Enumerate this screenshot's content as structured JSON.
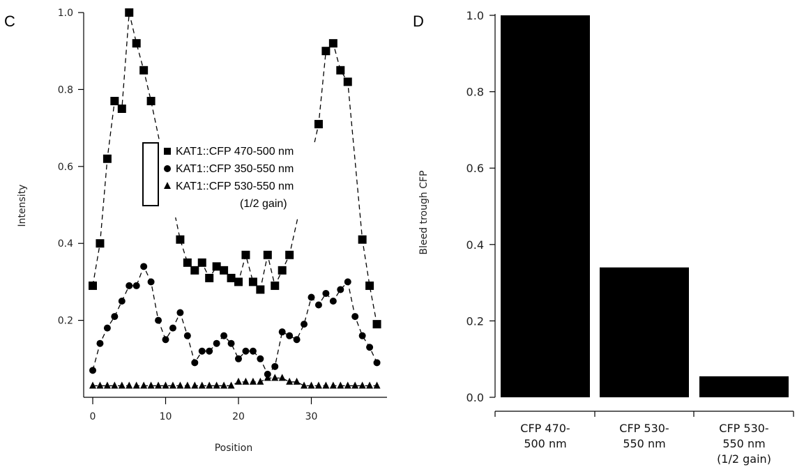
{
  "panel_c": {
    "letter": "C"
  },
  "panel_d": {
    "letter": "D"
  },
  "chart_data": [
    {
      "type": "scatter",
      "xlabel": "Position",
      "ylabel": "Intensity",
      "xlim": [
        -1,
        39.5
      ],
      "ylim": [
        0,
        1.0
      ],
      "x_ticks": [
        0,
        10,
        20,
        30
      ],
      "y_ticks": [
        0.2,
        0.4,
        0.6,
        0.8,
        1.0
      ],
      "legend_position": "center",
      "series": [
        {
          "name": "KAT1::CFP 470-500 nm",
          "marker": "square",
          "line": "dashed",
          "x": [
            0,
            1,
            2,
            3,
            4,
            5,
            6,
            7,
            8,
            12,
            13,
            14,
            15,
            16,
            17,
            18,
            19,
            20,
            21,
            22,
            23,
            24,
            25,
            26,
            27,
            31,
            32,
            33,
            34,
            35,
            37,
            38,
            39
          ],
          "y": [
            0.29,
            0.4,
            0.62,
            0.77,
            0.75,
            1.0,
            0.92,
            0.85,
            0.77,
            0.41,
            0.35,
            0.33,
            0.35,
            0.31,
            0.34,
            0.33,
            0.31,
            0.3,
            0.37,
            0.3,
            0.28,
            0.37,
            0.29,
            0.33,
            0.37,
            0.71,
            0.9,
            0.92,
            0.85,
            0.82,
            0.41,
            0.29,
            0.19
          ]
        },
        {
          "name": "KAT1::CFP 350-550 nm",
          "marker": "circle",
          "line": "dashed",
          "x": [
            0,
            1,
            2,
            3,
            4,
            5,
            6,
            7,
            8,
            9,
            10,
            11,
            12,
            13,
            14,
            15,
            16,
            17,
            18,
            19,
            20,
            21,
            22,
            23,
            24,
            25,
            26,
            27,
            28,
            29,
            30,
            31,
            32,
            33,
            34,
            35,
            36,
            37,
            38,
            39
          ],
          "y": [
            0.07,
            0.14,
            0.18,
            0.21,
            0.25,
            0.29,
            0.29,
            0.34,
            0.3,
            0.2,
            0.15,
            0.18,
            0.22,
            0.16,
            0.09,
            0.12,
            0.12,
            0.14,
            0.16,
            0.14,
            0.1,
            0.12,
            0.12,
            0.1,
            0.06,
            0.08,
            0.17,
            0.16,
            0.15,
            0.19,
            0.26,
            0.24,
            0.27,
            0.25,
            0.28,
            0.3,
            0.21,
            0.16,
            0.13,
            0.09
          ]
        },
        {
          "name": "KAT1::CFP 530-550 nm",
          "name_line2": "(1/2 gain)",
          "marker": "triangle",
          "line": "dashed",
          "x": [
            0,
            1,
            2,
            3,
            4,
            5,
            6,
            7,
            8,
            9,
            10,
            11,
            12,
            13,
            14,
            15,
            16,
            17,
            18,
            19,
            20,
            21,
            22,
            23,
            24,
            25,
            26,
            27,
            28,
            29,
            30,
            31,
            32,
            33,
            34,
            35,
            36,
            37,
            38,
            39
          ],
          "y": [
            0.03,
            0.03,
            0.03,
            0.03,
            0.03,
            0.03,
            0.03,
            0.03,
            0.03,
            0.03,
            0.03,
            0.03,
            0.03,
            0.03,
            0.03,
            0.03,
            0.03,
            0.03,
            0.03,
            0.03,
            0.04,
            0.04,
            0.04,
            0.04,
            0.05,
            0.05,
            0.05,
            0.04,
            0.04,
            0.03,
            0.03,
            0.03,
            0.03,
            0.03,
            0.03,
            0.03,
            0.03,
            0.03,
            0.03,
            0.03
          ]
        }
      ]
    },
    {
      "type": "bar",
      "ylabel": "Bleed trough CFP",
      "ylim": [
        0,
        1.0
      ],
      "y_ticks": [
        "0.0",
        "0.2",
        "0.4",
        "0.6",
        "0.8",
        "1.0"
      ],
      "categories": [
        [
          "CFP 470-",
          "500 nm"
        ],
        [
          "CFP 530-",
          "550 nm"
        ],
        [
          "CFP 530-",
          "550 nm",
          "(1/2 gain)"
        ]
      ],
      "values": [
        1.0,
        0.34,
        0.055
      ],
      "bar_color": "#000000"
    }
  ]
}
